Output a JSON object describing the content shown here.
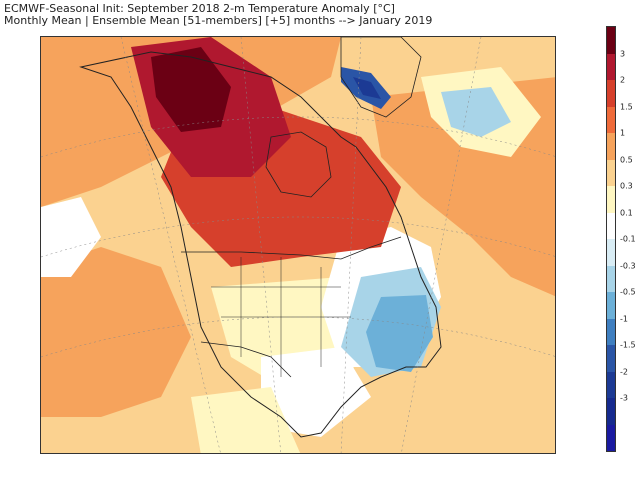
{
  "title": {
    "line1": "ECMWF-Seasonal Init: September 2018 2-m Temperature Anomaly [°C]",
    "line2": "Monthly Mean | Ensemble Mean [51-members] [+5] months --> January 2019"
  },
  "colorbar": {
    "segments": [
      {
        "color": "#6b0014"
      },
      {
        "color": "#b0182f"
      },
      {
        "color": "#d6402c"
      },
      {
        "color": "#ef6b3b"
      },
      {
        "color": "#f6a35c"
      },
      {
        "color": "#fbd290"
      },
      {
        "color": "#fff7c2"
      },
      {
        "color": "#ffffff"
      },
      {
        "color": "#d9edf5"
      },
      {
        "color": "#a8d4e8"
      },
      {
        "color": "#6cb0d8"
      },
      {
        "color": "#3f7fc0"
      },
      {
        "color": "#2a55a6"
      },
      {
        "color": "#1c3a94"
      },
      {
        "color": "#162a8e"
      },
      {
        "color": "#1a1aa0"
      }
    ],
    "labels": [
      "3",
      "2",
      "1.5",
      "1",
      "0.5",
      "0.3",
      "0.1",
      "-0.1",
      "-0.3",
      "-0.5",
      "-1",
      "-1.5",
      "-2",
      "-3"
    ]
  },
  "map": {
    "colors": {
      "ocean_warm": "#f6a35c",
      "ocean_light": "#fbd290",
      "pale": "#fff7c2",
      "neutral": "#ffffff",
      "north_canada": "#d6402c",
      "alaska_hot": "#b0182f",
      "alaska_core": "#6b0014",
      "east_cool": "#a8d4e8",
      "southeast_cool": "#6cb0d8",
      "hudson_cold": "#2a55a6",
      "greenland_cold": "#1c3a94",
      "coastline": "#222222",
      "grid": "#888888"
    }
  }
}
